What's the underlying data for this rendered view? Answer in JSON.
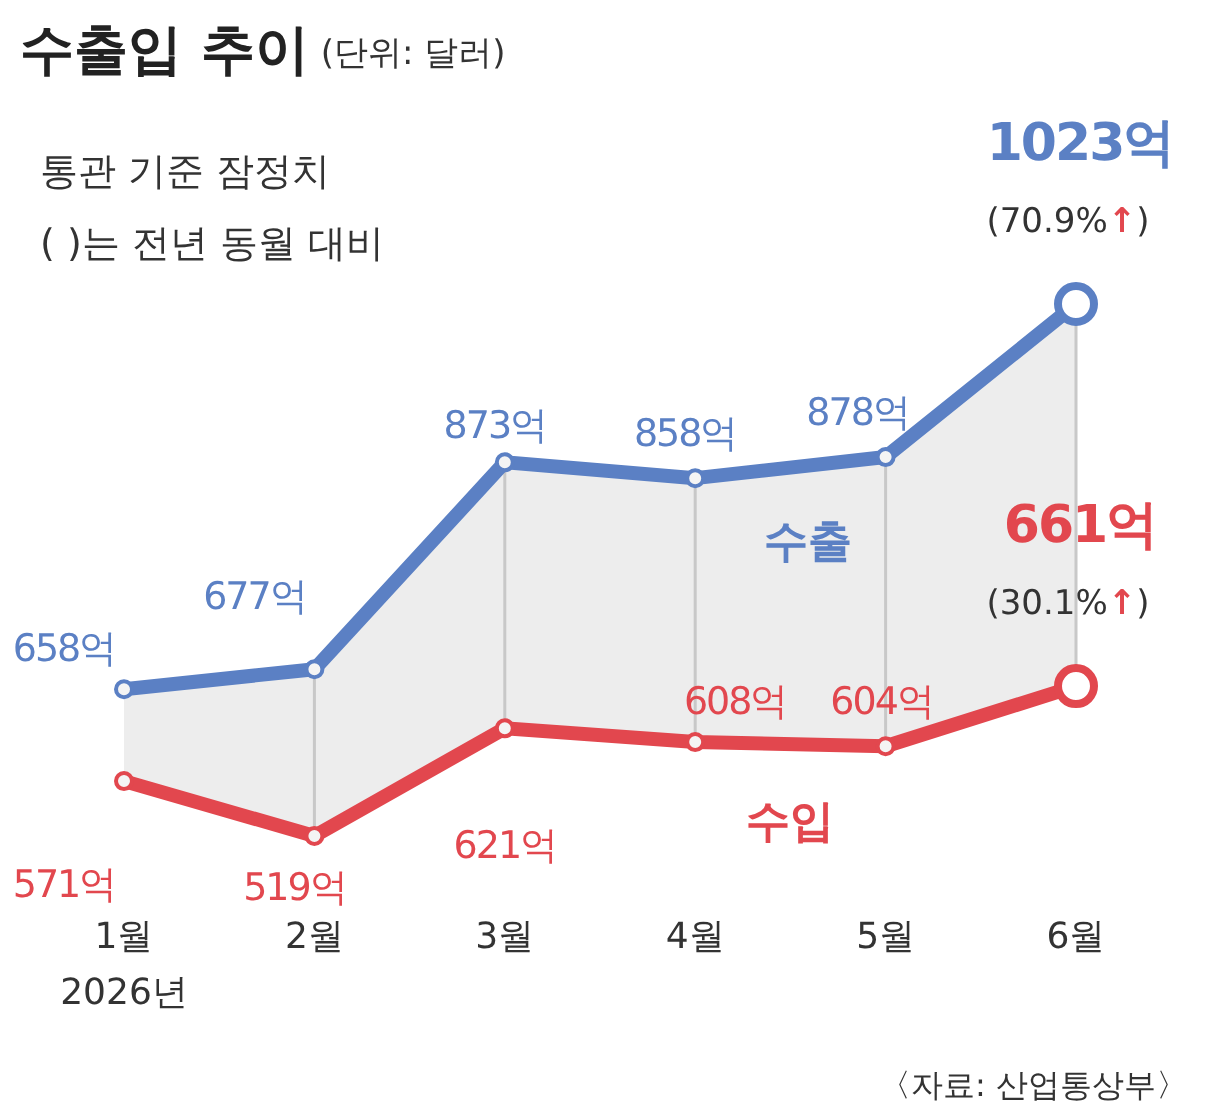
{
  "chart_data": {
    "type": "line",
    "title": "수출입 추이",
    "subtitle": "(단위: 달러)",
    "categories": [
      "1월",
      "2월",
      "3월",
      "4월",
      "5월",
      "6월"
    ],
    "tick_labels": "x",
    "marker": "circle",
    "series": [
      {
        "name": "수출",
        "color": "#5b80c4",
        "values": [
          658,
          677,
          873,
          858,
          878,
          1023
        ],
        "value_labels": [
          "658억",
          "677억",
          "873억",
          "858억",
          "878억",
          "1023억"
        ]
      },
      {
        "name": "수입",
        "color": "#e2474e",
        "values": [
          571,
          519,
          621,
          608,
          604,
          661
        ],
        "value_labels": [
          "571억",
          "519억",
          "621억",
          "608억",
          "604억",
          "661억"
        ]
      }
    ],
    "annotations": [
      "통관 기준 잠정치",
      "( )는 전년 동월 대비",
      "2026년",
      {
        "text": "(70.9%↑)",
        "x": "6월",
        "y": 1023
      },
      {
        "text": "(30.1%↑)",
        "x": "6월",
        "y": 661
      },
      "〈자료: 산업통상부〉"
    ]
  }
}
